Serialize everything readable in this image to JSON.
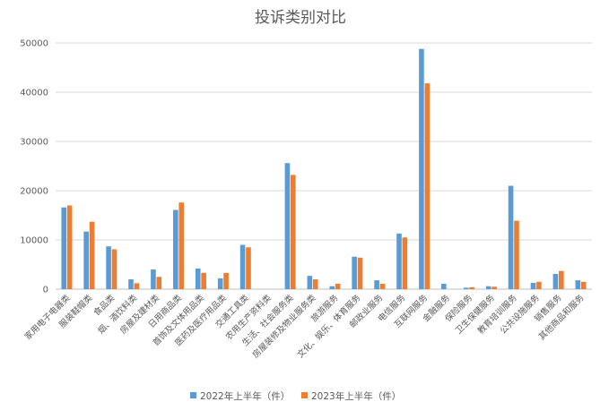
{
  "chart_data": {
    "type": "bar",
    "title": "投诉类别对比",
    "xlabel": "",
    "ylabel": "",
    "ylim": [
      0,
      50000
    ],
    "yticks": [
      0,
      10000,
      20000,
      30000,
      40000,
      50000
    ],
    "grid": true,
    "legend_position": "bottom",
    "categories": [
      "家用电子电器类",
      "服装鞋帽类",
      "食品类",
      "烟、酒饮料类",
      "房屋及建材类",
      "日用商品类",
      "首饰及文体用品类",
      "医药及医疗用品类",
      "交通工具类",
      "农用生产资料类",
      "生活、社会服务类",
      "房屋装修及物业服务类",
      "旅游服务",
      "文化、娱乐、体育服务",
      "邮政业服务",
      "电信服务",
      "互联网服务",
      "金融服务",
      "保险服务",
      "卫生保健服务",
      "教育培训服务",
      "公共设施服务",
      "销售服务",
      "其他商品和服务"
    ],
    "series": [
      {
        "name": "2022年上半年（件）",
        "color": "#5B9BD5",
        "values": [
          16600,
          11700,
          8700,
          2000,
          4000,
          16100,
          4200,
          2200,
          9000,
          0,
          25600,
          2700,
          600,
          6600,
          1800,
          11300,
          48800,
          1100,
          300,
          600,
          21000,
          1300,
          3100,
          1800
        ]
      },
      {
        "name": "2023年上半年（件）",
        "color": "#ED7D31",
        "values": [
          17000,
          13700,
          8100,
          1200,
          2500,
          17600,
          3300,
          3300,
          8500,
          0,
          23200,
          2000,
          1100,
          6400,
          1100,
          10500,
          41800,
          0,
          400,
          500,
          13900,
          1500,
          3700,
          1500
        ]
      }
    ]
  }
}
